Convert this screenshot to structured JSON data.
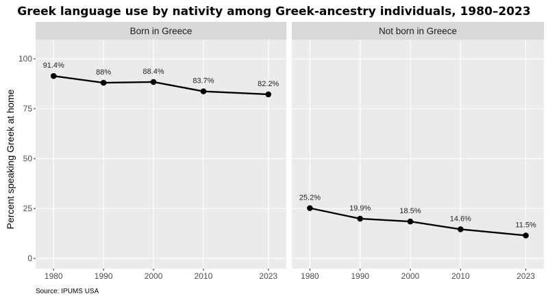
{
  "chart_data": {
    "type": "line",
    "title": "Greek language use by nativity among Greek-ancestry individuals, 1980–2023",
    "ylabel": "Percent speaking Greek at home",
    "xlabel": "",
    "caption": "Source: IPUMS USA",
    "x": [
      1980,
      1990,
      2000,
      2010,
      2023
    ],
    "x_tick_labels": [
      "1980",
      "1990",
      "2000",
      "2010",
      "2023"
    ],
    "ylim": [
      0,
      100
    ],
    "y_ticks": [
      0,
      25,
      50,
      75,
      100
    ],
    "y_tick_labels": [
      "0",
      "25",
      "50",
      "75",
      "100"
    ],
    "grid": true,
    "legend": "none",
    "facets": [
      {
        "name": "Born in Greece",
        "values": [
          91.4,
          88.0,
          88.4,
          83.7,
          82.2
        ],
        "labels": [
          "91.4%",
          "88%",
          "88.4%",
          "83.7%",
          "82.2%"
        ]
      },
      {
        "name": "Not born in Greece",
        "values": [
          25.2,
          19.9,
          18.5,
          14.6,
          11.5
        ],
        "labels": [
          "25.2%",
          "19.9%",
          "18.5%",
          "14.6%",
          "11.5%"
        ]
      }
    ],
    "colors": {
      "panel_bg": "#ebebeb",
      "strip_bg": "#d9d9d9",
      "grid": "#ffffff",
      "line": "#000000"
    }
  }
}
